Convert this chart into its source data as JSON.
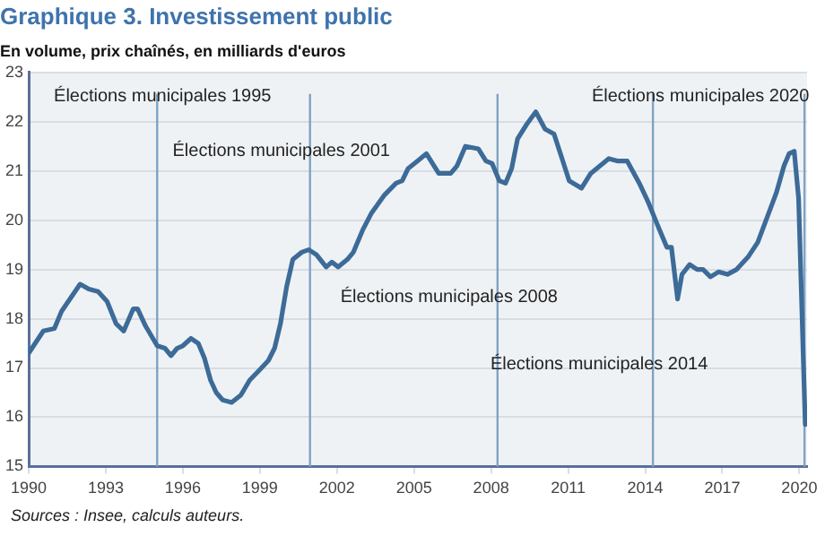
{
  "chart_data": {
    "type": "line",
    "title": "Graphique 3. Investissement public",
    "subtitle": "En volume, prix chaînés, en milliards d'euros",
    "annotations": [
      "Sources : Insee, calculs auteurs."
    ],
    "x": [
      1990.0,
      1990.57,
      1991.0,
      1991.28,
      1992.0,
      1992.34,
      1992.7,
      1993.05,
      1993.4,
      1993.7,
      1994.07,
      1994.24,
      1994.55,
      1995.0,
      1995.3,
      1995.54,
      1995.78,
      1996.0,
      1996.32,
      1996.6,
      1996.84,
      1997.08,
      1997.3,
      1997.55,
      1997.9,
      1998.26,
      1998.6,
      1998.97,
      1999.33,
      1999.57,
      1999.8,
      2000.04,
      2000.28,
      2000.63,
      2000.9,
      2001.2,
      2001.58,
      2001.8,
      2002.05,
      2002.4,
      2002.64,
      2003.0,
      2003.35,
      2003.83,
      2004.3,
      2004.54,
      2004.77,
      2005.13,
      2005.48,
      2005.96,
      2006.43,
      2006.67,
      2007.0,
      2007.5,
      2007.8,
      2008.04,
      2008.32,
      2008.56,
      2008.8,
      2009.03,
      2009.39,
      2009.74,
      2010.1,
      2010.45,
      2010.7,
      2011.04,
      2011.52,
      2011.88,
      2012.23,
      2012.58,
      2012.94,
      2013.3,
      2013.77,
      2014.13,
      2014.48,
      2014.84,
      2015.02,
      2015.26,
      2015.43,
      2015.73,
      2016.02,
      2016.25,
      2016.54,
      2016.85,
      2017.2,
      2017.56,
      2018.0,
      2018.38,
      2018.74,
      2019.1,
      2019.4,
      2019.6,
      2019.8,
      2019.97,
      2020.23
    ],
    "series": [
      {
        "color": "#3d6b98",
        "values": [
          17.3,
          17.75,
          17.8,
          18.15,
          18.7,
          18.6,
          18.55,
          18.35,
          17.9,
          17.75,
          18.2,
          18.2,
          17.85,
          17.45,
          17.4,
          17.25,
          17.4,
          17.45,
          17.6,
          17.5,
          17.2,
          16.75,
          16.5,
          16.35,
          16.3,
          16.45,
          16.75,
          16.95,
          17.15,
          17.4,
          17.9,
          18.65,
          19.2,
          19.35,
          19.4,
          19.3,
          19.05,
          19.15,
          19.05,
          19.2,
          19.35,
          19.8,
          20.15,
          20.5,
          20.75,
          20.8,
          21.05,
          21.2,
          21.35,
          20.95,
          20.95,
          21.1,
          21.5,
          21.45,
          21.2,
          21.15,
          20.8,
          20.75,
          21.05,
          21.65,
          21.95,
          22.2,
          21.85,
          21.75,
          21.35,
          20.8,
          20.65,
          20.95,
          21.1,
          21.25,
          21.2,
          21.2,
          20.75,
          20.35,
          19.9,
          19.45,
          19.45,
          18.4,
          18.9,
          19.1,
          19.0,
          19.0,
          18.85,
          18.95,
          18.9,
          19.0,
          19.25,
          19.55,
          20.05,
          20.55,
          21.1,
          21.35,
          21.4,
          20.45,
          15.85
        ]
      }
    ],
    "xlim": [
      1990,
      2020.3
    ],
    "xticks": [
      1990,
      1993,
      1996,
      1999,
      2002,
      2005,
      2008,
      2011,
      2014,
      2017,
      2020
    ],
    "ylim": [
      15,
      23
    ],
    "yticks": [
      15,
      16,
      17,
      18,
      19,
      20,
      21,
      22,
      23
    ],
    "grid": "y",
    "legend": false,
    "marker": "none",
    "line_style": "solid",
    "ref_lines": [
      {
        "axis": "x",
        "value": 1995,
        "label": "Élections municipales 1995",
        "color": "#7fa3c4"
      },
      {
        "axis": "x",
        "value": 2000.95,
        "label": "Élections municipales 2001",
        "color": "#7fa3c4"
      },
      {
        "axis": "x",
        "value": 2008.25,
        "label": "Élections municipales 2008",
        "color": "#7fa3c4"
      },
      {
        "axis": "x",
        "value": 2014.3,
        "label": "Élections municipales 2014",
        "color": "#7fa3c4"
      },
      {
        "axis": "x",
        "value": 2020.2,
        "label": "Élections municipales 2020",
        "color": "#7fa3c4"
      }
    ]
  }
}
